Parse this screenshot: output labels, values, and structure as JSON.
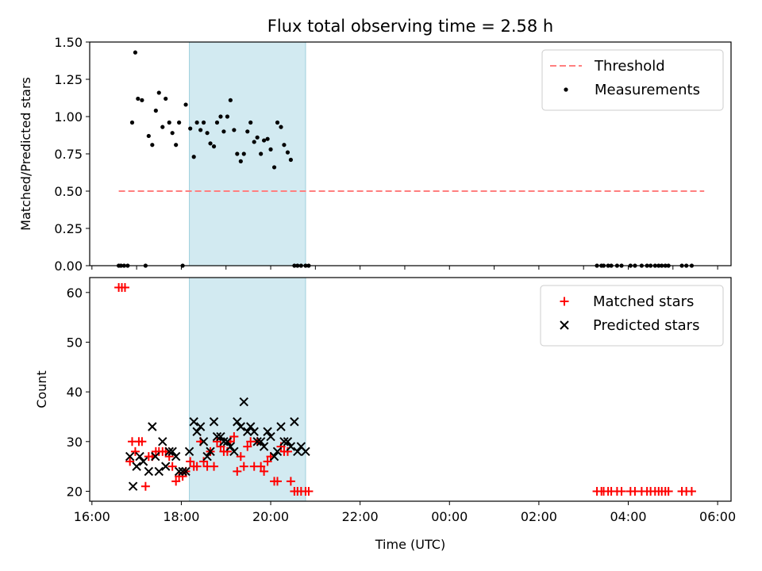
{
  "title": "Flux total observing time = 2.58 h",
  "chart_data": [
    {
      "type": "scatter",
      "ylabel": "Matched/Predicted stars",
      "xlim": [
        -0.05,
        14.3
      ],
      "ylim": [
        0,
        1.5
      ],
      "yticks": [
        "0.00",
        "0.25",
        "0.50",
        "0.75",
        "1.00",
        "1.25",
        "1.50"
      ],
      "ytick_values": [
        0,
        0.25,
        0.5,
        0.75,
        1.0,
        1.25,
        1.5
      ],
      "shaded_span": [
        2.18,
        4.78
      ],
      "legend_position": "top-right",
      "threshold": {
        "name": "Threshold",
        "x": [
          0.6,
          13.7
        ],
        "y": 0.5,
        "color": "#ff7f7f",
        "style": "dashed"
      },
      "series": [
        {
          "name": "Measurements",
          "color": "#000000",
          "marker": "dot",
          "x": [
            0.6,
            0.65,
            0.72,
            0.8,
            0.9,
            0.97,
            1.03,
            1.12,
            1.2,
            1.27,
            1.35,
            1.43,
            1.5,
            1.58,
            1.65,
            1.73,
            1.8,
            1.88,
            1.95,
            2.03,
            2.1,
            2.2,
            2.28,
            2.35,
            2.43,
            2.5,
            2.58,
            2.65,
            2.73,
            2.8,
            2.88,
            2.95,
            3.03,
            3.1,
            3.18,
            3.25,
            3.33,
            3.4,
            3.48,
            3.55,
            3.63,
            3.7,
            3.78,
            3.85,
            3.93,
            4.0,
            4.08,
            4.15,
            4.23,
            4.3,
            4.38,
            4.45,
            4.53,
            4.6,
            4.68,
            4.78,
            4.85,
            11.3,
            11.4,
            11.45,
            11.55,
            11.62,
            11.75,
            11.85,
            12.05,
            12.15,
            12.3,
            12.42,
            12.5,
            12.6,
            12.68,
            12.75,
            12.83,
            12.9,
            13.2,
            13.3,
            13.42
          ],
          "y": [
            0,
            0,
            0,
            0,
            0.96,
            1.43,
            1.12,
            1.11,
            0,
            0.87,
            0.81,
            1.04,
            1.16,
            0.93,
            1.12,
            0.96,
            0.89,
            0.81,
            0.96,
            0,
            1.08,
            0.92,
            0.73,
            0.96,
            0.91,
            0.96,
            0.89,
            0.82,
            0.8,
            0.96,
            1.0,
            0.9,
            1.0,
            1.11,
            0.91,
            0.75,
            0.7,
            0.75,
            0.9,
            0.96,
            0.83,
            0.86,
            0.75,
            0.84,
            0.85,
            0.78,
            0.66,
            0.96,
            0.93,
            0.81,
            0.76,
            0.71,
            0,
            0,
            0,
            0,
            0,
            0,
            0,
            0,
            0,
            0,
            0,
            0,
            0,
            0,
            0,
            0,
            0,
            0,
            0,
            0,
            0,
            0,
            0,
            0,
            0
          ]
        }
      ]
    },
    {
      "type": "scatter",
      "xlabel": "Time (UTC)",
      "ylabel": "Count",
      "xlim": [
        -0.05,
        14.3
      ],
      "ylim": [
        18,
        63
      ],
      "yticks": [
        "20",
        "30",
        "40",
        "50",
        "60"
      ],
      "ytick_values": [
        20,
        30,
        40,
        50,
        60
      ],
      "xticks": [
        "16:00",
        "18:00",
        "20:00",
        "22:00",
        "00:00",
        "02:00",
        "04:00",
        "06:00"
      ],
      "xtick_values": [
        0,
        2,
        4,
        6,
        8,
        10,
        12,
        14
      ],
      "xminor_values": [
        1,
        3,
        5,
        7,
        9,
        11,
        13
      ],
      "shaded_span": [
        2.18,
        4.78
      ],
      "legend_position": "top-right",
      "series": [
        {
          "name": "Matched stars",
          "color": "#ff0000",
          "marker": "plus",
          "x": [
            0.6,
            0.67,
            0.74,
            0.85,
            0.9,
            0.97,
            1.05,
            1.12,
            1.2,
            1.27,
            1.35,
            1.43,
            1.5,
            1.58,
            1.65,
            1.73,
            1.8,
            1.88,
            1.95,
            2.03,
            2.1,
            2.2,
            2.28,
            2.35,
            2.43,
            2.5,
            2.58,
            2.65,
            2.73,
            2.8,
            2.88,
            2.95,
            3.03,
            3.1,
            3.18,
            3.25,
            3.33,
            3.4,
            3.48,
            3.55,
            3.63,
            3.7,
            3.78,
            3.85,
            3.93,
            4.0,
            4.08,
            4.15,
            4.23,
            4.3,
            4.38,
            4.45,
            4.53,
            4.6,
            4.68,
            4.78,
            4.85,
            11.3,
            11.4,
            11.45,
            11.55,
            11.62,
            11.75,
            11.85,
            12.05,
            12.15,
            12.3,
            12.42,
            12.5,
            12.6,
            12.68,
            12.75,
            12.83,
            12.9,
            13.2,
            13.3,
            13.42
          ],
          "y": [
            61,
            61,
            61,
            26,
            30,
            28,
            30,
            30,
            21,
            27,
            27,
            28,
            28,
            28,
            28,
            27,
            25,
            22,
            23,
            23,
            24,
            26,
            25,
            25,
            30,
            26,
            25,
            28,
            25,
            30,
            29,
            28,
            28,
            30,
            31,
            24,
            27,
            25,
            29,
            30,
            25,
            30,
            25,
            24,
            26,
            27,
            22,
            22,
            29,
            28,
            28,
            22,
            20,
            20,
            20,
            20,
            20,
            20,
            20,
            20,
            20,
            20,
            20,
            20,
            20,
            20,
            20,
            20,
            20,
            20,
            20,
            20,
            20,
            20,
            20,
            20,
            20
          ]
        },
        {
          "name": "Predicted stars",
          "color": "#000000",
          "marker": "x",
          "x": [
            0.85,
            0.92,
            1.0,
            1.07,
            1.15,
            1.27,
            1.35,
            1.42,
            1.5,
            1.58,
            1.65,
            1.73,
            1.8,
            1.88,
            1.95,
            2.03,
            2.1,
            2.18,
            2.28,
            2.35,
            2.43,
            2.5,
            2.58,
            2.65,
            2.73,
            2.8,
            2.88,
            2.95,
            3.03,
            3.1,
            3.18,
            3.25,
            3.33,
            3.4,
            3.48,
            3.55,
            3.63,
            3.7,
            3.78,
            3.85,
            3.93,
            4.0,
            4.08,
            4.15,
            4.23,
            4.3,
            4.38,
            4.45,
            4.53,
            4.6,
            4.68,
            4.78
          ],
          "y": [
            27,
            21,
            25,
            27,
            26,
            24,
            33,
            27,
            24,
            30,
            25,
            28,
            28,
            27,
            24,
            24,
            24,
            28,
            34,
            32,
            33,
            30,
            27,
            28,
            34,
            31,
            31,
            30,
            30,
            29,
            28,
            34,
            33,
            38,
            32,
            33,
            32,
            30,
            30,
            29,
            32,
            31,
            27,
            28,
            33,
            30,
            30,
            29,
            34,
            28,
            29,
            28
          ]
        }
      ]
    }
  ]
}
